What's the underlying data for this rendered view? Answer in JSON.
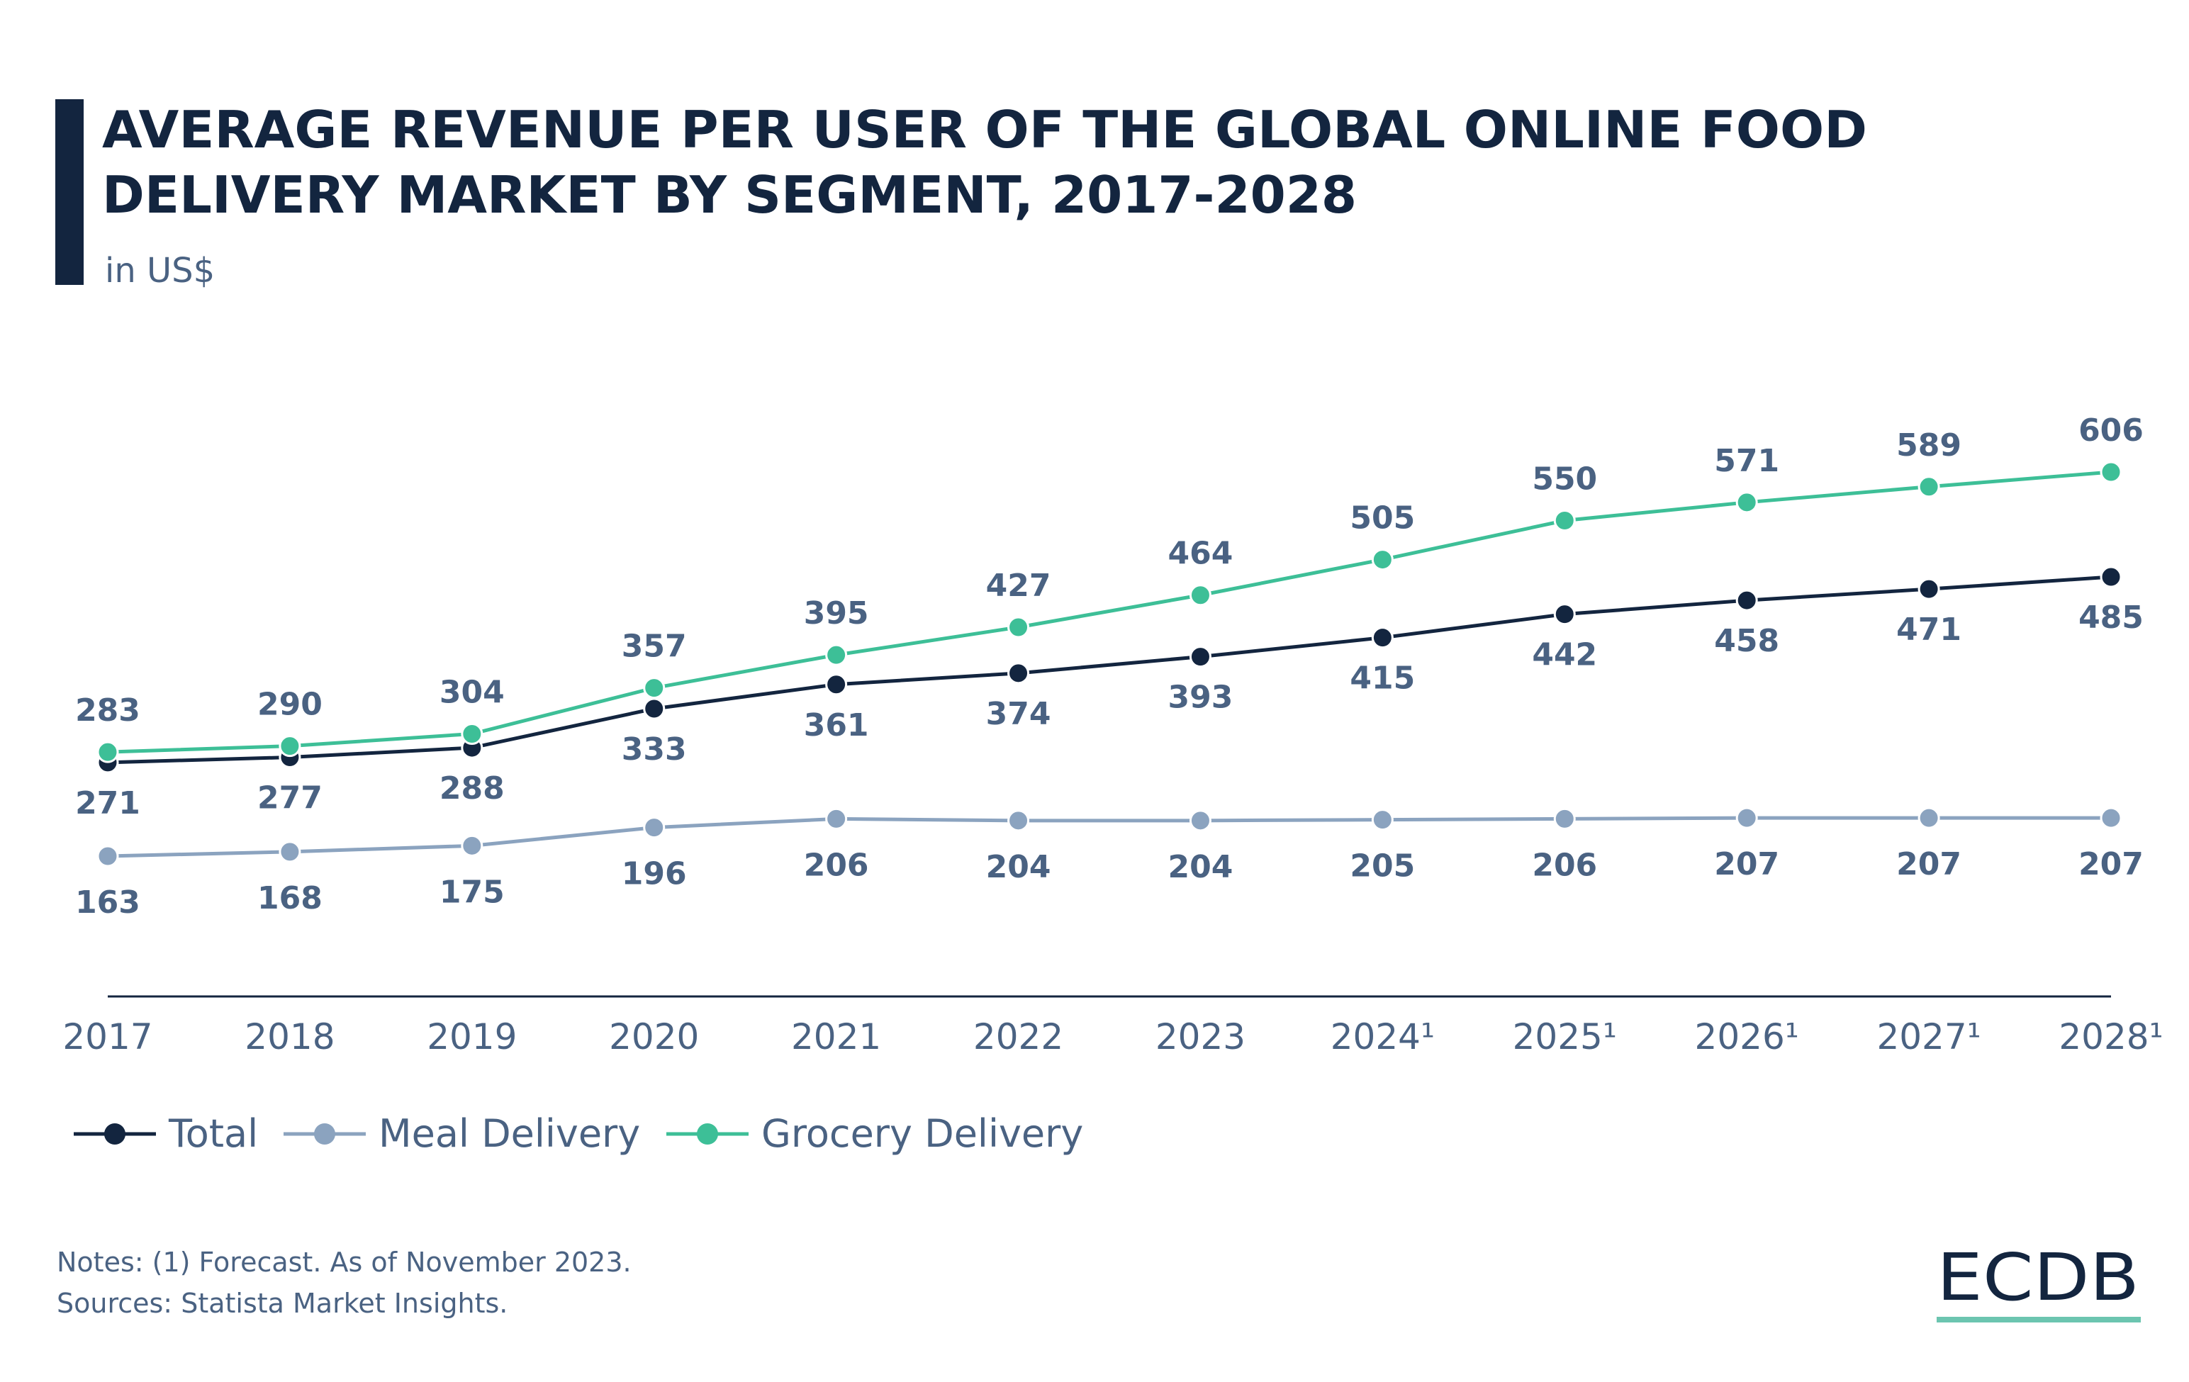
{
  "chart_data": {
    "type": "line",
    "title": "AVERAGE REVENUE PER USER OF THE GLOBAL ONLINE FOOD DELIVERY MARKET BY SEGMENT, 2017-2028",
    "title_lines": [
      "AVERAGE REVENUE PER USER OF THE GLOBAL ONLINE FOOD",
      "DELIVERY MARKET BY SEGMENT, 2017-2028"
    ],
    "subtitle": "in US$",
    "xlabel": "",
    "ylabel": "",
    "categories": [
      "2017",
      "2018",
      "2019",
      "2020",
      "2021",
      "2022",
      "2023",
      "2024¹",
      "2025¹",
      "2026¹",
      "2027¹",
      "2028¹"
    ],
    "series": [
      {
        "name": "Total",
        "color": "#13253f",
        "values": [
          271,
          277,
          288,
          333,
          361,
          374,
          393,
          415,
          442,
          458,
          471,
          485
        ]
      },
      {
        "name": "Meal Delivery",
        "color": "#8ba3bf",
        "values": [
          163,
          168,
          175,
          196,
          206,
          204,
          204,
          205,
          206,
          207,
          207,
          207
        ]
      },
      {
        "name": "Grocery Delivery",
        "color": "#3dbf97",
        "values": [
          283,
          290,
          304,
          357,
          395,
          427,
          464,
          505,
          550,
          571,
          589,
          606
        ]
      }
    ],
    "grid": false,
    "legend_position": "bottom-left",
    "data_labels": true
  },
  "footer": {
    "notes": "Notes: (1) Forecast. As of November 2023.",
    "sources": "Sources: Statista Market Insights."
  },
  "logo": {
    "text": "ECDB",
    "accent_color": "#6cc5b0"
  },
  "colors": {
    "title": "#13253f",
    "text": "#4a6282",
    "accent_bar": "#13253f"
  }
}
